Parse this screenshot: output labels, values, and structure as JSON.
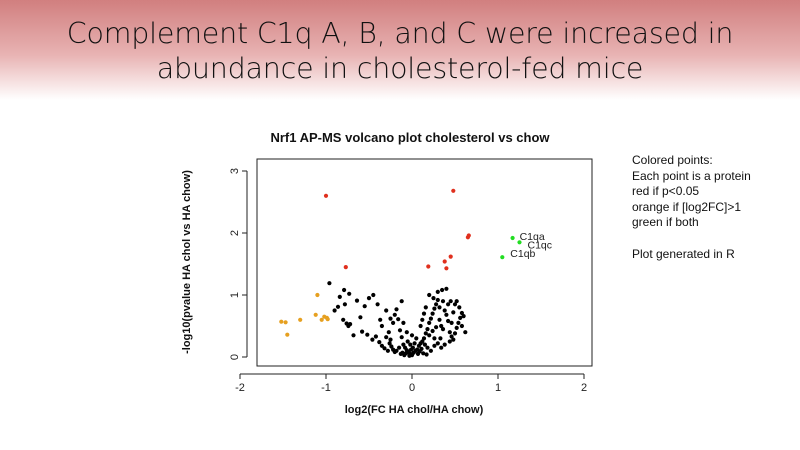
{
  "slide": {
    "title_line1": "Complement C1q A, B, and C were increased in",
    "title_line2": "abundance in cholesterol-fed mice"
  },
  "notes": {
    "lines_group1": [
      "Colored points:",
      "Each point is a protein",
      "red if p<0.05",
      "orange if [log2FC]>1",
      "green if both"
    ],
    "lines_group2": [
      "Plot generated in R"
    ]
  },
  "chart_data": {
    "type": "scatter",
    "title": "Nrf1 AP-MS volcano plot cholesterol vs chow",
    "xlabel": "log2(FC HA chol/HA chow)",
    "ylabel": "-log10(pvalue HA chol vs HA chow)",
    "xlim": [
      -2,
      2
    ],
    "ylim": [
      0,
      3
    ],
    "xticks": [
      -2,
      -1,
      0,
      1,
      2
    ],
    "yticks": [
      0,
      1,
      2,
      3
    ],
    "colors": {
      "black": "#000000",
      "red": "#e0301e",
      "orange": "#e6a020",
      "green": "#22dd22"
    },
    "series": [
      {
        "color": "green",
        "points": [
          [
            1.17,
            1.92
          ],
          [
            1.25,
            1.85
          ],
          [
            1.05,
            1.61
          ]
        ],
        "labels": [
          "C1qa",
          "C1qc",
          "C1qb"
        ]
      },
      {
        "color": "red",
        "points": [
          [
            -1.0,
            2.6
          ],
          [
            0.48,
            2.68
          ],
          [
            0.66,
            1.96
          ],
          [
            0.65,
            1.93
          ],
          [
            -0.77,
            1.45
          ],
          [
            0.45,
            1.62
          ],
          [
            0.38,
            1.54
          ],
          [
            0.19,
            1.46
          ],
          [
            0.4,
            1.43
          ]
        ]
      },
      {
        "color": "orange",
        "points": [
          [
            -1.52,
            0.57
          ],
          [
            -1.47,
            0.56
          ],
          [
            -1.45,
            0.36
          ],
          [
            -1.3,
            0.6
          ],
          [
            -1.12,
            0.68
          ],
          [
            -1.1,
            1.0
          ],
          [
            -1.05,
            0.6
          ],
          [
            -1.02,
            0.65
          ],
          [
            -0.99,
            0.63
          ],
          [
            -0.98,
            0.61
          ]
        ]
      },
      {
        "color": "black",
        "points": [
          [
            -0.96,
            1.19
          ],
          [
            -0.86,
            0.81
          ],
          [
            -0.78,
            0.85
          ],
          [
            -0.76,
            0.54
          ],
          [
            -0.74,
            0.5
          ],
          [
            -0.72,
            0.53
          ],
          [
            -0.68,
            0.35
          ],
          [
            -0.8,
            0.6
          ],
          [
            -0.9,
            0.75
          ],
          [
            -0.84,
            0.97
          ],
          [
            -0.79,
            1.08
          ],
          [
            -0.73,
            1.02
          ],
          [
            -0.64,
            0.91
          ],
          [
            -0.6,
            0.64
          ],
          [
            -0.55,
            0.82
          ],
          [
            -0.5,
            0.95
          ],
          [
            -0.45,
            1.0
          ],
          [
            -0.4,
            0.85
          ],
          [
            -0.37,
            0.6
          ],
          [
            -0.35,
            0.5
          ],
          [
            -0.3,
            0.32
          ],
          [
            -0.27,
            0.4
          ],
          [
            -0.25,
            0.28
          ],
          [
            -0.22,
            0.55
          ],
          [
            -0.2,
            0.68
          ],
          [
            -0.18,
            0.77
          ],
          [
            -0.16,
            0.61
          ],
          [
            -0.14,
            0.43
          ],
          [
            -0.12,
            0.32
          ],
          [
            -0.1,
            0.2
          ],
          [
            -0.08,
            0.15
          ],
          [
            -0.06,
            0.11
          ],
          [
            -0.04,
            0.08
          ],
          [
            -0.02,
            0.05
          ],
          [
            0.0,
            0.03
          ],
          [
            0.02,
            0.07
          ],
          [
            0.04,
            0.1
          ],
          [
            0.06,
            0.12
          ],
          [
            0.08,
            0.18
          ],
          [
            0.1,
            0.22
          ],
          [
            0.12,
            0.25
          ],
          [
            0.14,
            0.3
          ],
          [
            0.16,
            0.38
          ],
          [
            0.18,
            0.45
          ],
          [
            0.2,
            0.55
          ],
          [
            0.22,
            0.62
          ],
          [
            0.24,
            0.7
          ],
          [
            0.26,
            0.78
          ],
          [
            0.28,
            0.85
          ],
          [
            0.3,
            0.92
          ],
          [
            0.32,
            0.6
          ],
          [
            0.34,
            0.5
          ],
          [
            0.36,
            0.45
          ],
          [
            0.38,
            0.75
          ],
          [
            0.4,
            0.68
          ],
          [
            0.42,
            0.58
          ],
          [
            0.44,
            0.4
          ],
          [
            0.46,
            0.33
          ],
          [
            0.48,
            0.28
          ],
          [
            0.5,
            0.38
          ],
          [
            0.52,
            0.47
          ],
          [
            0.54,
            0.55
          ],
          [
            0.56,
            0.63
          ],
          [
            0.58,
            0.71
          ],
          [
            0.6,
            0.66
          ],
          [
            0.62,
            0.4
          ],
          [
            0.3,
            1.05
          ],
          [
            0.35,
            1.08
          ],
          [
            0.4,
            1.1
          ],
          [
            0.45,
            0.9
          ],
          [
            0.5,
            0.85
          ],
          [
            0.25,
            0.95
          ],
          [
            0.2,
            1.0
          ],
          [
            -0.3,
            0.75
          ],
          [
            -0.25,
            0.62
          ],
          [
            -0.12,
            0.9
          ],
          [
            -0.1,
            0.55
          ],
          [
            -0.05,
            0.25
          ],
          [
            0.05,
            0.3
          ],
          [
            0.15,
            0.2
          ],
          [
            0.18,
            0.15
          ],
          [
            0.22,
            0.1
          ],
          [
            0.26,
            0.18
          ],
          [
            0.3,
            0.22
          ],
          [
            0.33,
            0.3
          ],
          [
            -0.15,
            0.15
          ],
          [
            -0.18,
            0.1
          ],
          [
            -0.2,
            0.08
          ],
          [
            -0.22,
            0.12
          ],
          [
            -0.24,
            0.17
          ],
          [
            -0.26,
            0.22
          ],
          [
            -0.28,
            0.1
          ],
          [
            -0.32,
            0.14
          ],
          [
            -0.35,
            0.18
          ],
          [
            -0.38,
            0.24
          ],
          [
            -0.42,
            0.33
          ],
          [
            -0.46,
            0.28
          ],
          [
            -0.52,
            0.36
          ],
          [
            -0.58,
            0.41
          ],
          [
            0.1,
            0.5
          ],
          [
            0.12,
            0.6
          ],
          [
            0.14,
            0.7
          ],
          [
            0.16,
            0.8
          ],
          [
            0.2,
            0.35
          ],
          [
            0.24,
            0.42
          ],
          [
            0.28,
            0.48
          ],
          [
            0.32,
            0.8
          ],
          [
            0.36,
            0.9
          ],
          [
            0.42,
            0.85
          ],
          [
            0.48,
            0.72
          ],
          [
            0.52,
            0.9
          ],
          [
            0.55,
            0.8
          ],
          [
            0.58,
            0.5
          ],
          [
            -0.06,
            0.4
          ],
          [
            -0.02,
            0.2
          ],
          [
            0.01,
            0.15
          ],
          [
            0.03,
            0.22
          ],
          [
            0.07,
            0.05
          ],
          [
            0.09,
            0.09
          ],
          [
            0.11,
            0.13
          ],
          [
            0.13,
            0.06
          ],
          [
            0.17,
            0.04
          ],
          [
            -0.01,
            0.12
          ],
          [
            -0.03,
            0.02
          ],
          [
            -0.07,
            0.06
          ],
          [
            -0.09,
            0.03
          ],
          [
            -0.11,
            0.07
          ],
          [
            -0.13,
            0.05
          ],
          [
            0.0,
            0.35
          ],
          [
            0.26,
            0.3
          ],
          [
            0.34,
            0.15
          ],
          [
            0.38,
            0.2
          ],
          [
            0.44,
            0.25
          ],
          [
            0.46,
            0.55
          ]
        ]
      }
    ]
  }
}
